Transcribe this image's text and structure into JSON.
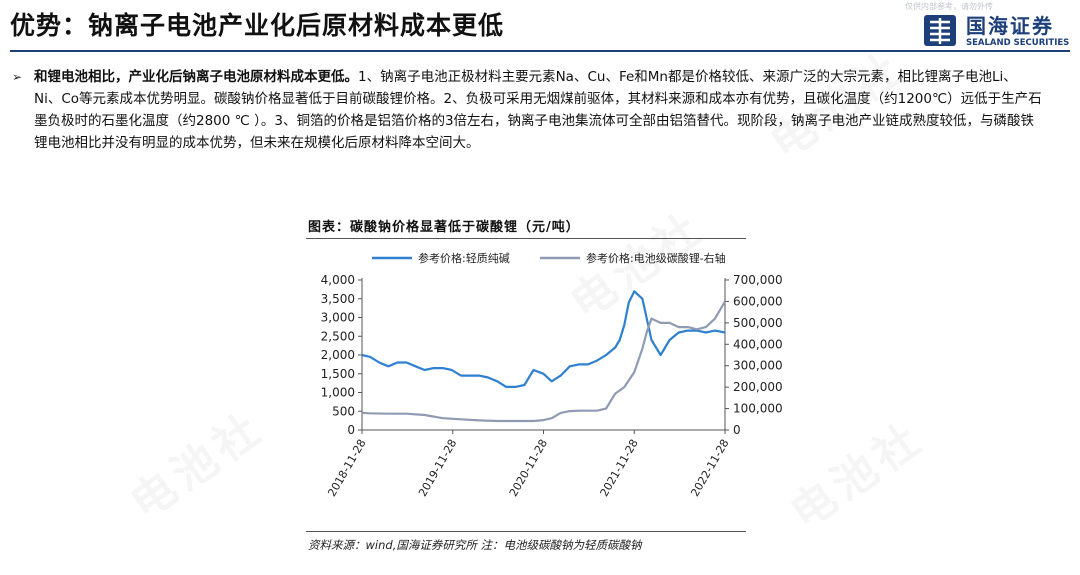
{
  "header": {
    "title": "优势：钠离子电池产业化后原材料成本更低",
    "disclaimer": "仅供内部参考，请勿外传",
    "logo_cn": "国海证券",
    "logo_en": "SEALAND SECURITIES"
  },
  "body": {
    "bullet_symbol": "➢",
    "lead": "和锂电池相比，产业化后钠离子电池原材料成本更低。",
    "text": "1、钠离子电池正极材料主要元素Na、Cu、Fe和Mn都是价格较低、来源广泛的大宗元素，相比锂离子电池Li、Ni、Co等元素成本优势明显。碳酸钠价格显著低于目前碳酸锂价格。2、负极可采用无烟煤前驱体，其材料来源和成本亦有优势，且碳化温度（约1200℃）远低于生产石墨负极时的石墨化温度（约2800 ℃ ）。3、铜箔的价格是铝箔价格的3倍左右，钠离子电池集流体可全部由铝箔替代。现阶段，钠离子电池产业链成熟度较低，与磷酸铁锂电池相比并没有明显的成本优势，但未来在规模化后原材料降本空间大。"
  },
  "chart_title": "图表：碳酸钠价格显著低于碳酸锂（元/吨）",
  "source_note": "资料来源：wind,国海证券研究所 注：电池级碳酸钠为轻质碳酸钠",
  "watermark": "电池社",
  "colors": {
    "series_soda": "#2f80d0",
    "series_lithium": "#8f9bb3",
    "brand": "#1d3f7a"
  },
  "chart_data": {
    "type": "line",
    "title": "图表：碳酸钠价格显著低于碳酸锂（元/吨）",
    "x_ticks": [
      "2018-11-28",
      "2019-11-28",
      "2020-11-28",
      "2021-11-28",
      "2022-11-28"
    ],
    "y_left": {
      "ticks": [
        "0",
        "500",
        "1,000",
        "1,500",
        "2,000",
        "2,500",
        "3,000",
        "3,500",
        "4,000"
      ],
      "range": [
        0,
        4000
      ]
    },
    "y_right": {
      "ticks": [
        "0",
        "100,000",
        "200,000",
        "300,000",
        "400,000",
        "500,000",
        "600,000",
        "700,000"
      ],
      "range": [
        0,
        700000
      ]
    },
    "legend_position": "top",
    "series": [
      {
        "name": "参考价格:轻质纯碱",
        "axis": "left",
        "x": [
          2018.91,
          2019.0,
          2019.1,
          2019.2,
          2019.3,
          2019.4,
          2019.5,
          2019.6,
          2019.7,
          2019.8,
          2019.9,
          2020.0,
          2020.1,
          2020.2,
          2020.3,
          2020.4,
          2020.5,
          2020.6,
          2020.7,
          2020.8,
          2020.91,
          2021.0,
          2021.1,
          2021.2,
          2021.3,
          2021.4,
          2021.5,
          2021.6,
          2021.7,
          2021.75,
          2021.8,
          2021.85,
          2021.91,
          2022.0,
          2022.1,
          2022.2,
          2022.3,
          2022.4,
          2022.5,
          2022.6,
          2022.7,
          2022.8,
          2022.91
        ],
        "y": [
          2000,
          1950,
          1800,
          1700,
          1800,
          1800,
          1700,
          1600,
          1650,
          1650,
          1600,
          1450,
          1450,
          1450,
          1400,
          1300,
          1150,
          1150,
          1200,
          1600,
          1500,
          1300,
          1450,
          1700,
          1750,
          1750,
          1850,
          2000,
          2200,
          2400,
          2800,
          3400,
          3700,
          3500,
          2400,
          2000,
          2400,
          2600,
          2650,
          2650,
          2600,
          2650,
          2600
        ]
      },
      {
        "name": "参考价格:电池级碳酸锂-右轴",
        "axis": "right",
        "x": [
          2018.91,
          2019.0,
          2019.2,
          2019.4,
          2019.6,
          2019.8,
          2020.0,
          2020.2,
          2020.4,
          2020.6,
          2020.8,
          2020.91,
          2021.0,
          2021.1,
          2021.2,
          2021.3,
          2021.4,
          2021.5,
          2021.6,
          2021.7,
          2021.8,
          2021.91,
          2022.0,
          2022.05,
          2022.1,
          2022.2,
          2022.3,
          2022.4,
          2022.5,
          2022.6,
          2022.7,
          2022.8,
          2022.91
        ],
        "y": [
          80000,
          78000,
          76000,
          76000,
          70000,
          55000,
          50000,
          45000,
          42000,
          42000,
          42000,
          46000,
          55000,
          80000,
          88000,
          90000,
          90000,
          90000,
          100000,
          170000,
          200000,
          270000,
          380000,
          460000,
          520000,
          500000,
          500000,
          480000,
          480000,
          470000,
          480000,
          520000,
          600000
        ]
      }
    ]
  }
}
